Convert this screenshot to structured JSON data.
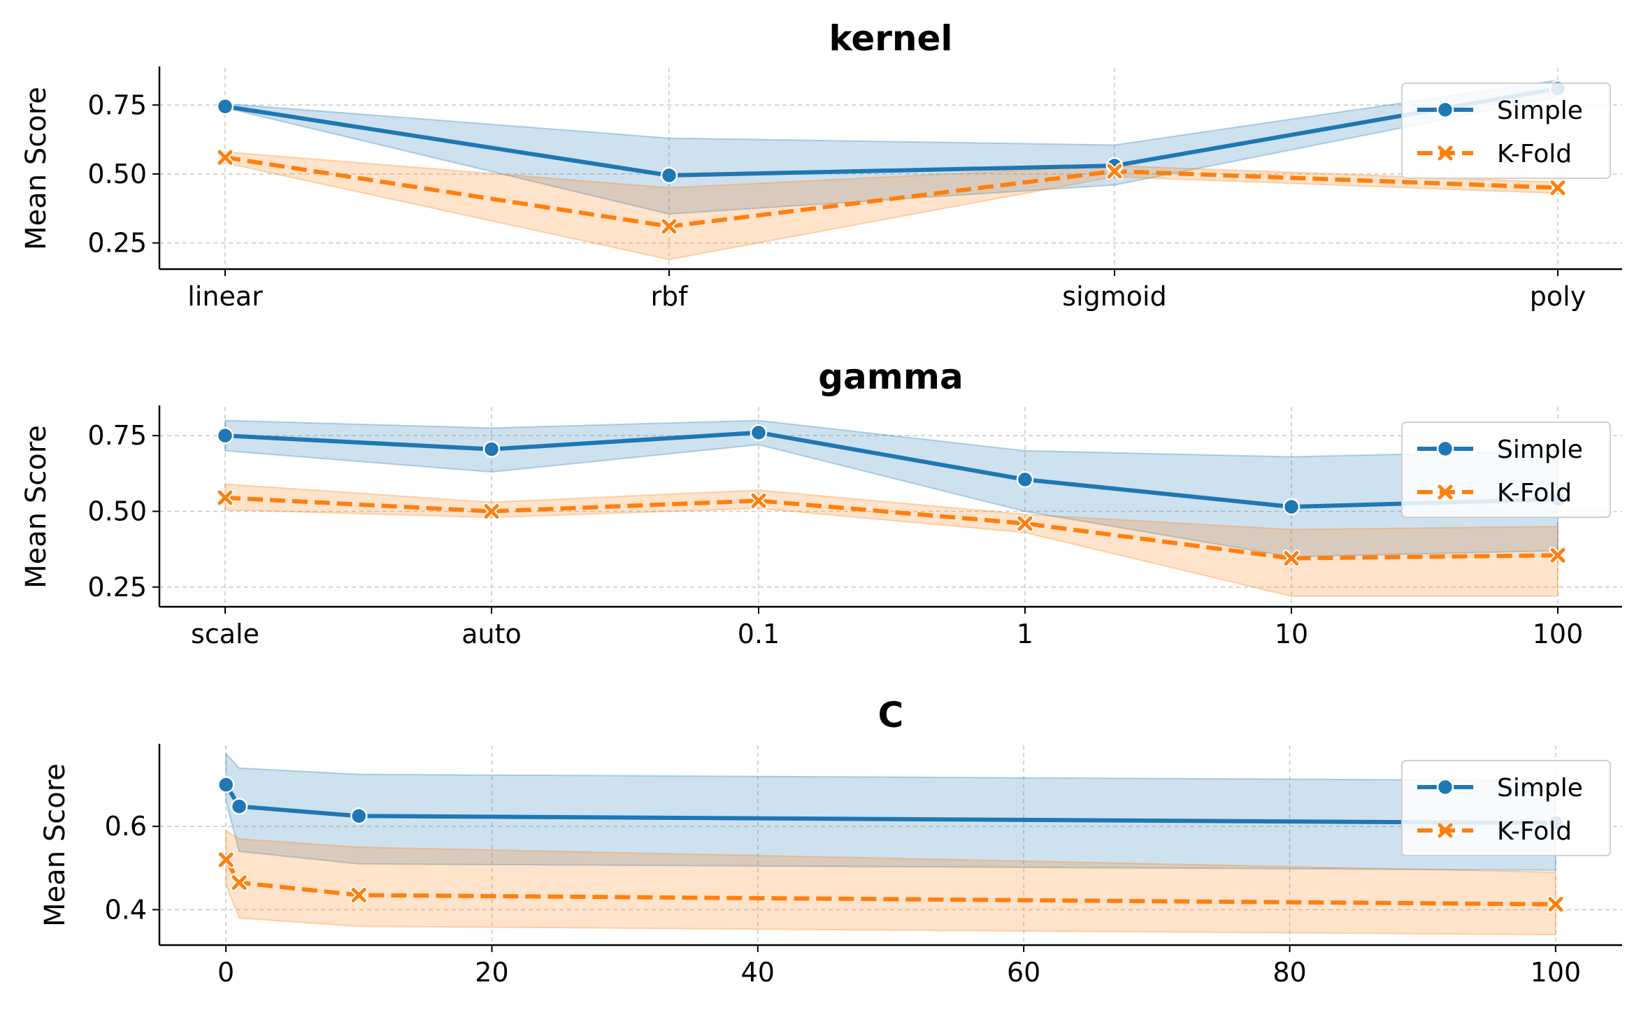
{
  "colors": {
    "simple": "#1f77b4",
    "kfold": "#ff7f0e",
    "grid": "#c8c8c8",
    "axis": "#000000"
  },
  "chart_data": [
    {
      "type": "line",
      "title": "kernel",
      "xlabel": "",
      "ylabel": "Mean Score",
      "x_kind": "categorical",
      "categories": [
        "linear",
        "rbf",
        "sigmoid",
        "poly"
      ],
      "ylim": [
        0.155,
        0.885
      ],
      "yticks": [
        0.25,
        0.5,
        0.75
      ],
      "ytick_labels": [
        "0.25",
        "0.50",
        "0.75"
      ],
      "grid": true,
      "legend_position": "upper-right",
      "series": [
        {
          "name": "Simple",
          "marker": "circle",
          "style": "solid",
          "color": "#1f77b4",
          "values": [
            0.745,
            0.495,
            0.53,
            0.81
          ],
          "lower": [
            0.74,
            0.355,
            0.46,
            0.78
          ],
          "upper": [
            0.755,
            0.63,
            0.605,
            0.84
          ]
        },
        {
          "name": "K-Fold",
          "marker": "x",
          "style": "dashed",
          "color": "#ff7f0e",
          "values": [
            0.56,
            0.31,
            0.51,
            0.45
          ],
          "lower": [
            0.54,
            0.19,
            0.49,
            0.43
          ],
          "upper": [
            0.58,
            0.45,
            0.53,
            0.47
          ]
        }
      ]
    },
    {
      "type": "line",
      "title": "gamma",
      "xlabel": "",
      "ylabel": "Mean Score",
      "x_kind": "categorical",
      "categories": [
        "scale",
        "auto",
        "0.1",
        "1",
        "10",
        "100"
      ],
      "ylim": [
        0.185,
        0.845
      ],
      "yticks": [
        0.25,
        0.5,
        0.75
      ],
      "ytick_labels": [
        "0.25",
        "0.50",
        "0.75"
      ],
      "grid": true,
      "legend_position": "upper-right",
      "series": [
        {
          "name": "Simple",
          "marker": "circle",
          "style": "solid",
          "color": "#1f77b4",
          "values": [
            0.75,
            0.705,
            0.76,
            0.605,
            0.515,
            0.54
          ],
          "lower": [
            0.7,
            0.63,
            0.72,
            0.5,
            0.35,
            0.37
          ],
          "upper": [
            0.8,
            0.775,
            0.8,
            0.7,
            0.68,
            0.7
          ]
        },
        {
          "name": "K-Fold",
          "marker": "x",
          "style": "dashed",
          "color": "#ff7f0e",
          "values": [
            0.545,
            0.5,
            0.535,
            0.46,
            0.345,
            0.355
          ],
          "lower": [
            0.505,
            0.48,
            0.51,
            0.43,
            0.22,
            0.22
          ],
          "upper": [
            0.59,
            0.53,
            0.57,
            0.49,
            0.44,
            0.45
          ]
        }
      ]
    },
    {
      "type": "line",
      "title": "C",
      "xlabel": "",
      "ylabel": "Mean Score",
      "x_kind": "numeric",
      "xlim": [
        -5,
        105
      ],
      "xticks": [
        0,
        20,
        40,
        60,
        80,
        100
      ],
      "xtick_labels": [
        "0",
        "20",
        "40",
        "60",
        "80",
        "100"
      ],
      "ylim": [
        0.315,
        0.795
      ],
      "yticks": [
        0.4,
        0.6
      ],
      "ytick_labels": [
        "0.4",
        "0.6"
      ],
      "grid": true,
      "legend_position": "upper-right",
      "series": [
        {
          "name": "Simple",
          "marker": "circle",
          "style": "solid",
          "color": "#1f77b4",
          "x": [
            0.01,
            1,
            10,
            100
          ],
          "values": [
            0.7,
            0.648,
            0.625,
            0.608
          ],
          "lower": [
            0.66,
            0.54,
            0.51,
            0.495
          ],
          "upper": [
            0.775,
            0.74,
            0.725,
            0.71
          ]
        },
        {
          "name": "K-Fold",
          "marker": "x",
          "style": "dashed",
          "color": "#ff7f0e",
          "x": [
            0.01,
            1,
            10,
            100
          ],
          "values": [
            0.52,
            0.465,
            0.435,
            0.413
          ],
          "lower": [
            0.46,
            0.38,
            0.36,
            0.34
          ],
          "upper": [
            0.59,
            0.57,
            0.55,
            0.49
          ]
        }
      ]
    }
  ]
}
